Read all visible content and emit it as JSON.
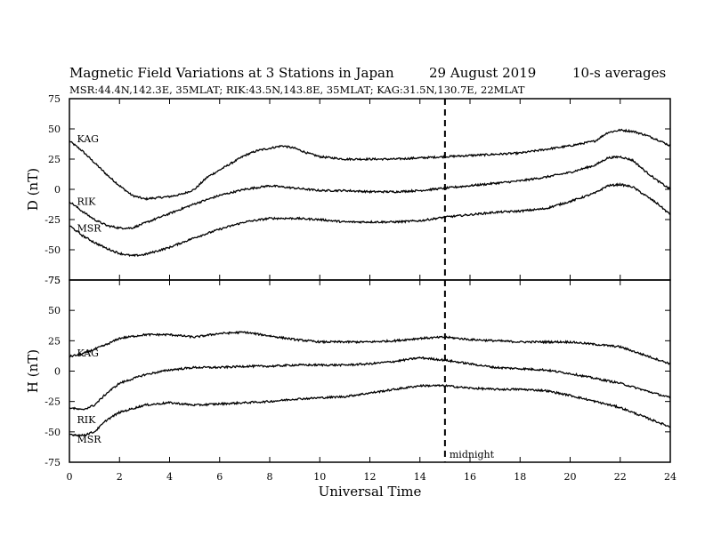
{
  "header": {
    "title": "Magnetic Field Variations at 3 Stations in Japan",
    "date": "29  August   2019",
    "averaging": "10-s averages",
    "stations_line": "MSR:44.4N,142.3E, 35MLAT;  RIK:43.5N,143.8E, 35MLAT;  KAG:31.5N,130.7E, 22MLAT"
  },
  "annotations": {
    "midnight_label": "midnight"
  },
  "chart_data": [
    {
      "type": "line",
      "ylabel": "D (nT)",
      "ylim": [
        -75,
        75
      ],
      "yticks": [
        -75,
        -50,
        -25,
        0,
        25,
        50,
        75
      ],
      "xlim": [
        0,
        24
      ],
      "x_ticks": [
        0,
        2,
        4,
        6,
        8,
        10,
        12,
        14,
        16,
        18,
        20,
        22,
        24
      ],
      "midnight_ut": 15,
      "series": [
        {
          "name": "KAG",
          "label_at": [
            0.3,
            42
          ],
          "points": [
            [
              0,
              40
            ],
            [
              0.5,
              32
            ],
            [
              1,
              22
            ],
            [
              1.5,
              12
            ],
            [
              2,
              3
            ],
            [
              2.5,
              -5
            ],
            [
              3,
              -8
            ],
            [
              3.5,
              -7
            ],
            [
              4,
              -6
            ],
            [
              4.5,
              -4
            ],
            [
              5,
              0
            ],
            [
              5.5,
              10
            ],
            [
              6,
              16
            ],
            [
              6.5,
              22
            ],
            [
              7,
              28
            ],
            [
              7.5,
              32
            ],
            [
              8,
              34
            ],
            [
              8.5,
              36
            ],
            [
              9,
              34
            ],
            [
              9.5,
              30
            ],
            [
              10,
              27
            ],
            [
              11,
              25
            ],
            [
              12,
              25
            ],
            [
              13,
              25
            ],
            [
              14,
              26
            ],
            [
              15,
              27
            ],
            [
              16,
              28
            ],
            [
              17,
              29
            ],
            [
              18,
              30
            ],
            [
              19,
              33
            ],
            [
              20,
              36
            ],
            [
              21,
              40
            ],
            [
              21.5,
              47
            ],
            [
              22,
              49
            ],
            [
              22.5,
              48
            ],
            [
              23,
              45
            ],
            [
              23.5,
              41
            ],
            [
              24,
              36
            ]
          ]
        },
        {
          "name": "RIK",
          "label_at": [
            0.3,
            -10
          ],
          "points": [
            [
              0,
              -10
            ],
            [
              0.5,
              -18
            ],
            [
              1,
              -25
            ],
            [
              1.5,
              -30
            ],
            [
              2,
              -32
            ],
            [
              2.5,
              -32
            ],
            [
              3,
              -28
            ],
            [
              4,
              -20
            ],
            [
              5,
              -12
            ],
            [
              6,
              -5
            ],
            [
              7,
              0
            ],
            [
              8,
              3
            ],
            [
              9,
              1
            ],
            [
              10,
              -1
            ],
            [
              11,
              -1
            ],
            [
              12,
              -2
            ],
            [
              13,
              -2
            ],
            [
              14,
              -1
            ],
            [
              15,
              1
            ],
            [
              16,
              3
            ],
            [
              17,
              5
            ],
            [
              18,
              7
            ],
            [
              19,
              10
            ],
            [
              20,
              14
            ],
            [
              21,
              20
            ],
            [
              21.5,
              26
            ],
            [
              22,
              27
            ],
            [
              22.5,
              24
            ],
            [
              23,
              15
            ],
            [
              23.5,
              7
            ],
            [
              24,
              0
            ]
          ]
        },
        {
          "name": "MSR",
          "label_at": [
            0.3,
            -32
          ],
          "points": [
            [
              0,
              -30
            ],
            [
              0.5,
              -38
            ],
            [
              1,
              -44
            ],
            [
              1.5,
              -49
            ],
            [
              2,
              -53
            ],
            [
              2.5,
              -55
            ],
            [
              3,
              -54
            ],
            [
              4,
              -48
            ],
            [
              5,
              -40
            ],
            [
              6,
              -33
            ],
            [
              7,
              -27
            ],
            [
              8,
              -24
            ],
            [
              9,
              -24
            ],
            [
              10,
              -25
            ],
            [
              11,
              -27
            ],
            [
              12,
              -27
            ],
            [
              13,
              -27
            ],
            [
              14,
              -26
            ],
            [
              15,
              -23
            ],
            [
              16,
              -21
            ],
            [
              17,
              -19
            ],
            [
              18,
              -18
            ],
            [
              19,
              -16
            ],
            [
              20,
              -10
            ],
            [
              21,
              -3
            ],
            [
              21.5,
              3
            ],
            [
              22,
              4
            ],
            [
              22.5,
              2
            ],
            [
              23,
              -5
            ],
            [
              23.5,
              -12
            ],
            [
              24,
              -21
            ]
          ]
        }
      ]
    },
    {
      "type": "line",
      "ylabel": "H (nT)",
      "xlabel": "Universal Time",
      "ylim": [
        -75,
        75
      ],
      "yticks": [
        -75,
        -50,
        -25,
        0,
        25,
        50,
        75
      ],
      "xlim": [
        0,
        24
      ],
      "x_ticks": [
        0,
        2,
        4,
        6,
        8,
        10,
        12,
        14,
        16,
        18,
        20,
        22,
        24
      ],
      "midnight_ut": 15,
      "series": [
        {
          "name": "KAG",
          "label_at": [
            0.3,
            15
          ],
          "points": [
            [
              0,
              12
            ],
            [
              0.5,
              14
            ],
            [
              1,
              18
            ],
            [
              1.5,
              22
            ],
            [
              2,
              27
            ],
            [
              3,
              30
            ],
            [
              4,
              30
            ],
            [
              5,
              28
            ],
            [
              6,
              31
            ],
            [
              7,
              32
            ],
            [
              8,
              29
            ],
            [
              9,
              26
            ],
            [
              10,
              24
            ],
            [
              11,
              24
            ],
            [
              12,
              24
            ],
            [
              13,
              25
            ],
            [
              14,
              27
            ],
            [
              15,
              28
            ],
            [
              16,
              26
            ],
            [
              17,
              25
            ],
            [
              18,
              24
            ],
            [
              19,
              24
            ],
            [
              20,
              24
            ],
            [
              21,
              22
            ],
            [
              22,
              20
            ],
            [
              23,
              13
            ],
            [
              24,
              6
            ]
          ]
        },
        {
          "name": "RIK",
          "label_at": [
            0.3,
            -40
          ],
          "points": [
            [
              0,
              -30
            ],
            [
              0.5,
              -32
            ],
            [
              1,
              -28
            ],
            [
              1.5,
              -18
            ],
            [
              2,
              -10
            ],
            [
              3,
              -3
            ],
            [
              4,
              1
            ],
            [
              5,
              3
            ],
            [
              6,
              3
            ],
            [
              7,
              4
            ],
            [
              8,
              4
            ],
            [
              9,
              5
            ],
            [
              10,
              5
            ],
            [
              11,
              5
            ],
            [
              12,
              6
            ],
            [
              13,
              8
            ],
            [
              14,
              11
            ],
            [
              15,
              9
            ],
            [
              16,
              6
            ],
            [
              17,
              3
            ],
            [
              18,
              2
            ],
            [
              19,
              1
            ],
            [
              20,
              -2
            ],
            [
              21,
              -6
            ],
            [
              22,
              -10
            ],
            [
              23,
              -16
            ],
            [
              24,
              -22
            ]
          ]
        },
        {
          "name": "MSR",
          "label_at": [
            0.3,
            -56
          ],
          "points": [
            [
              0,
              -52
            ],
            [
              0.5,
              -53
            ],
            [
              1,
              -50
            ],
            [
              1.5,
              -40
            ],
            [
              2,
              -34
            ],
            [
              3,
              -28
            ],
            [
              4,
              -26
            ],
            [
              5,
              -28
            ],
            [
              6,
              -27
            ],
            [
              7,
              -26
            ],
            [
              8,
              -25
            ],
            [
              9,
              -23
            ],
            [
              10,
              -22
            ],
            [
              11,
              -21
            ],
            [
              12,
              -18
            ],
            [
              13,
              -15
            ],
            [
              14,
              -12
            ],
            [
              15,
              -12
            ],
            [
              16,
              -14
            ],
            [
              17,
              -15
            ],
            [
              18,
              -15
            ],
            [
              19,
              -16
            ],
            [
              20,
              -20
            ],
            [
              21,
              -25
            ],
            [
              22,
              -30
            ],
            [
              23,
              -38
            ],
            [
              24,
              -46
            ]
          ]
        }
      ]
    }
  ]
}
